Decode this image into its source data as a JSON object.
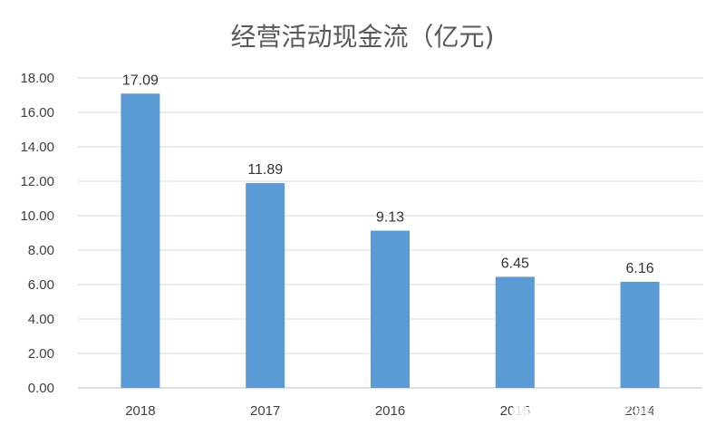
{
  "chart_data": {
    "type": "bar",
    "title": "经营活动现金流（亿元)",
    "categories": [
      "2018",
      "2017",
      "2016",
      "2015",
      "2014"
    ],
    "values": [
      17.09,
      11.89,
      9.13,
      6.45,
      6.16
    ],
    "data_labels": [
      "17.09",
      "11.89",
      "9.13",
      "6.45",
      "6.16"
    ],
    "ylim": [
      0,
      18
    ],
    "yticks": [
      "0.00",
      "2.00",
      "4.00",
      "6.00",
      "8.00",
      "10.00",
      "12.00",
      "14.00",
      "16.00",
      "18.00"
    ],
    "grid": true,
    "bar_color": "#5b9bd5",
    "grid_color": "#d9d9d9"
  },
  "watermark": {
    "text": "雪球：苟富贵对于"
  }
}
